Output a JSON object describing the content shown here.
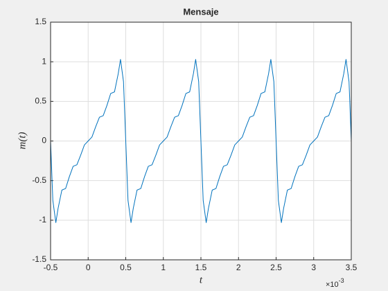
{
  "chart_data": {
    "type": "line",
    "title": "Mensaje",
    "x_label": "t",
    "y_label": "m(t)",
    "x_exponent": {
      "base": "×10",
      "power": "-3"
    },
    "color": "#0072bd",
    "grid": true,
    "xlim": [
      -0.5,
      3.5
    ],
    "ylim": [
      -1.5,
      1.5
    ],
    "xticks": [
      -0.5,
      0,
      0.5,
      1,
      1.5,
      2,
      2.5,
      3,
      3.5
    ],
    "yticks": [
      -1.5,
      -1,
      -0.5,
      0,
      0.5,
      1,
      1.5
    ],
    "x": [
      -0.5,
      -0.47,
      -0.43,
      -0.4,
      -0.35,
      -0.3,
      -0.25,
      -0.2,
      -0.15,
      -0.1,
      -0.05,
      0,
      0.05,
      0.1,
      0.15,
      0.2,
      0.25,
      0.3,
      0.35,
      0.4,
      0.43,
      0.47,
      0.5,
      0.53,
      0.57,
      0.6,
      0.65,
      0.7,
      0.75,
      0.8,
      0.85,
      0.9,
      0.95,
      1,
      1.05,
      1.1,
      1.15,
      1.2,
      1.25,
      1.3,
      1.35,
      1.4,
      1.43,
      1.47,
      1.5,
      1.53,
      1.57,
      1.6,
      1.65,
      1.7,
      1.75,
      1.8,
      1.85,
      1.9,
      1.95,
      2,
      2.05,
      2.1,
      2.15,
      2.2,
      2.25,
      2.3,
      2.35,
      2.4,
      2.43,
      2.47,
      2.5,
      2.53,
      2.57,
      2.6,
      2.65,
      2.7,
      2.75,
      2.8,
      2.85,
      2.9,
      2.95,
      3,
      3.05,
      3.1,
      3.15,
      3.2,
      3.25,
      3.3,
      3.35,
      3.4,
      3.43,
      3.47,
      3.5
    ],
    "values": [
      0,
      -0.75,
      -1.03,
      -0.85,
      -0.62,
      -0.6,
      -0.45,
      -0.32,
      -0.3,
      -0.18,
      -0.05,
      0,
      0.05,
      0.18,
      0.3,
      0.32,
      0.45,
      0.6,
      0.62,
      0.85,
      1.03,
      0.75,
      0,
      -0.75,
      -1.03,
      -0.85,
      -0.62,
      -0.6,
      -0.45,
      -0.32,
      -0.3,
      -0.18,
      -0.05,
      0,
      0.05,
      0.18,
      0.3,
      0.32,
      0.45,
      0.6,
      0.62,
      0.85,
      1.03,
      0.75,
      0,
      -0.75,
      -1.03,
      -0.85,
      -0.62,
      -0.6,
      -0.45,
      -0.32,
      -0.3,
      -0.18,
      -0.05,
      0,
      0.05,
      0.18,
      0.3,
      0.32,
      0.45,
      0.6,
      0.62,
      0.85,
      1.03,
      0.75,
      0,
      -0.75,
      -1.03,
      -0.85,
      -0.62,
      -0.6,
      -0.45,
      -0.32,
      -0.3,
      -0.18,
      -0.05,
      0,
      0.05,
      0.18,
      0.3,
      0.32,
      0.45,
      0.6,
      0.62,
      0.85,
      1.03,
      0.75,
      0
    ]
  }
}
